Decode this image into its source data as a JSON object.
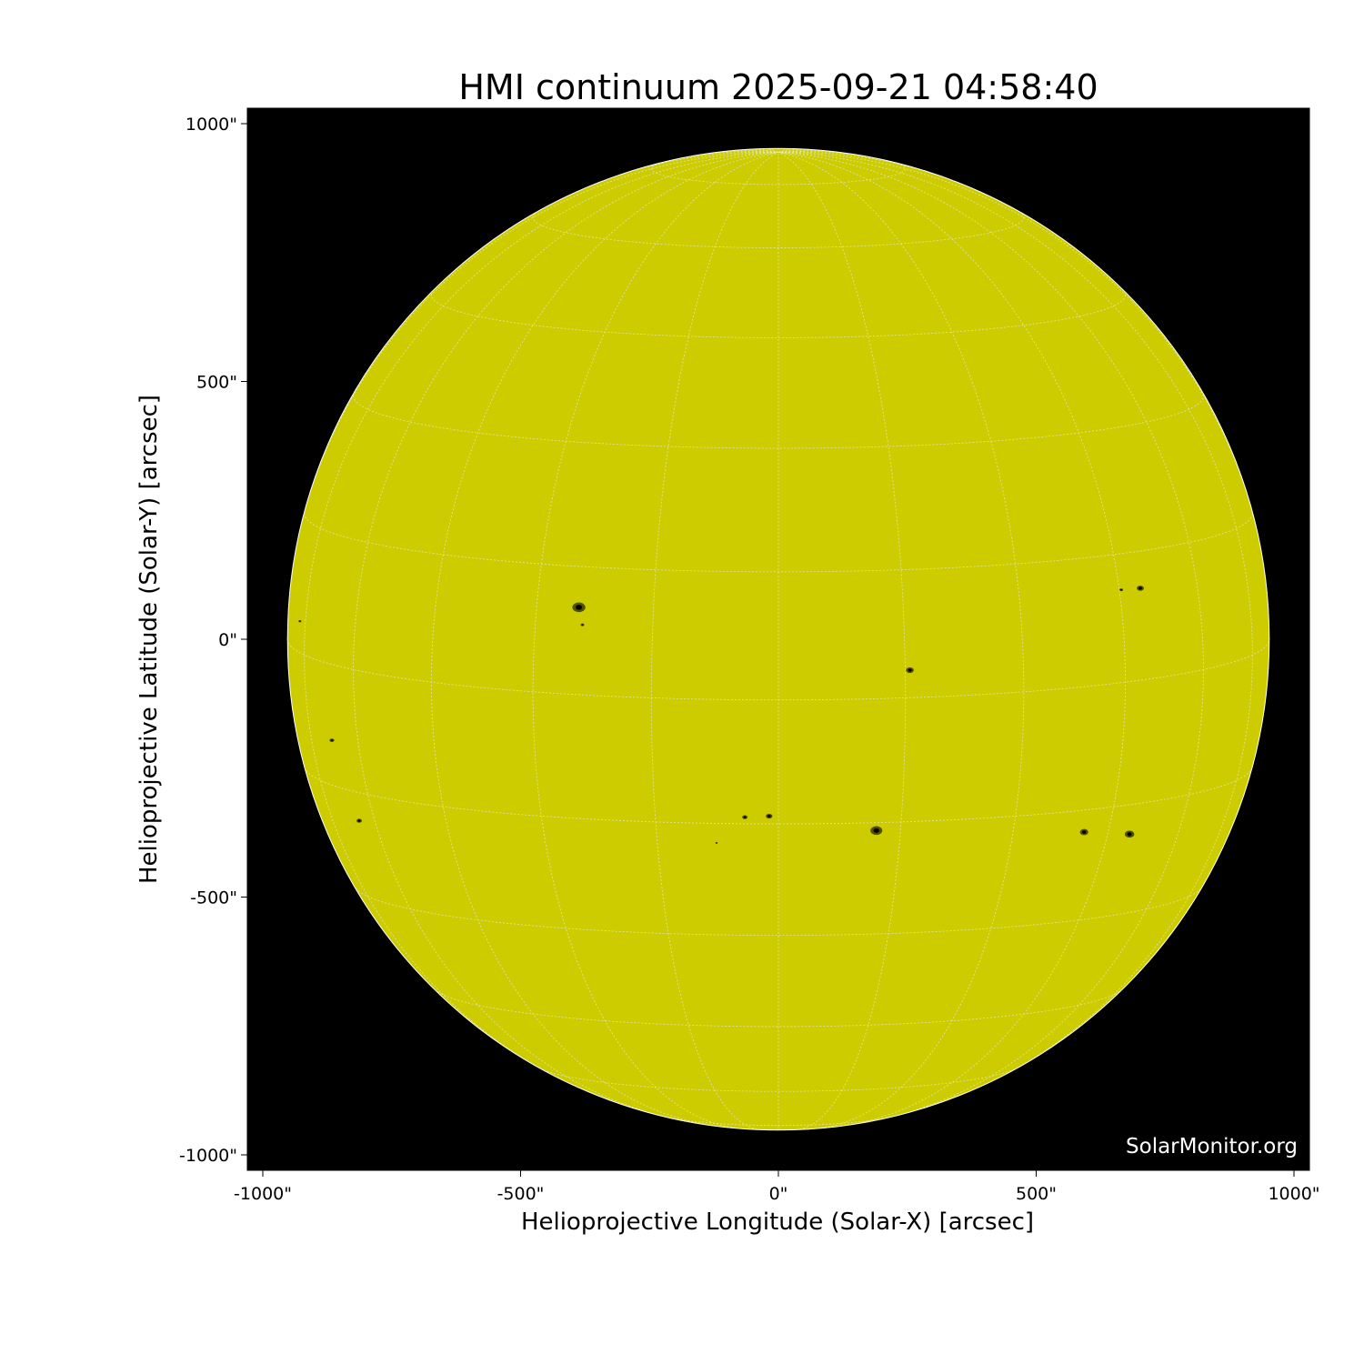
{
  "title": "HMI continuum 2025-09-21 04:58:40",
  "watermark": "SolarMonitor.org",
  "chart_data": {
    "type": "image",
    "title": "HMI continuum 2025-09-21 04:58:40",
    "xlabel": "Helioprojective Longitude (Solar-X) [arcsec]",
    "ylabel": "Helioprojective Latitude (Solar-Y) [arcsec]",
    "xlim": [
      -1030,
      1030
    ],
    "ylim": [
      -1030,
      1030
    ],
    "x_ticks": [
      {
        "value": -1000,
        "label": "-1000\""
      },
      {
        "value": -500,
        "label": "-500\""
      },
      {
        "value": 0,
        "label": "0\""
      },
      {
        "value": 500,
        "label": "500\""
      },
      {
        "value": 1000,
        "label": "1000\""
      }
    ],
    "y_ticks": [
      {
        "value": 1000,
        "label": "1000\""
      },
      {
        "value": 500,
        "label": "500\""
      },
      {
        "value": 0,
        "label": "0\""
      },
      {
        "value": -500,
        "label": "-500\""
      },
      {
        "value": -1000,
        "label": "-1000\""
      }
    ],
    "solar_radius_arcsec": 952,
    "grid_spacing_deg": 15,
    "background_color": "#000000",
    "disk_color": "#cccc00",
    "grid_color": "#e8e8c8",
    "sunspots": [
      {
        "x": -387,
        "y": 62,
        "size": 22
      },
      {
        "x": -380,
        "y": 28,
        "size": 6
      },
      {
        "x": 702,
        "y": 99,
        "size": 12
      },
      {
        "x": 665,
        "y": 96,
        "size": 6
      },
      {
        "x": 255,
        "y": -60,
        "size": 13
      },
      {
        "x": 190,
        "y": -371,
        "size": 20
      },
      {
        "x": 681,
        "y": -378,
        "size": 16
      },
      {
        "x": 593,
        "y": -374,
        "size": 14
      },
      {
        "x": -18,
        "y": -343,
        "size": 11
      },
      {
        "x": -65,
        "y": -345,
        "size": 9
      },
      {
        "x": -866,
        "y": -196,
        "size": 8
      },
      {
        "x": -813,
        "y": -352,
        "size": 9
      },
      {
        "x": -928,
        "y": 35,
        "size": 5
      },
      {
        "x": -120,
        "y": -395,
        "size": 4
      }
    ]
  }
}
